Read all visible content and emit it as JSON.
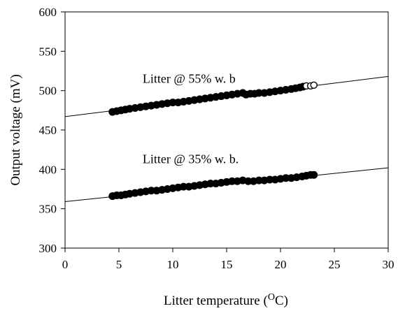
{
  "chart_data": {
    "type": "scatter",
    "title": "",
    "xlabel": "Litter temperature (",
    "xlabel_sup": "O",
    "xlabel_tail": "C)",
    "ylabel": "Output voltage (mV)",
    "xlim": [
      0,
      30
    ],
    "ylim": [
      300,
      600
    ],
    "x_ticks": [
      0,
      5,
      10,
      15,
      20,
      25,
      30
    ],
    "y_ticks": [
      300,
      350,
      400,
      450,
      500,
      550,
      600
    ],
    "grid": false,
    "legend": "none",
    "annotations": [
      {
        "text": "Litter @ 55% w. b",
        "x": 7.2,
        "y": 510
      },
      {
        "text": "Litter @ 35% w. b.",
        "x": 7.2,
        "y": 408
      }
    ],
    "series": [
      {
        "marker": "filled-circle",
        "x": [
          4.4,
          4.8,
          5.2,
          5.6,
          6.0,
          6.5,
          7.0,
          7.5,
          8.0,
          8.5,
          9.0,
          9.5,
          10.0,
          10.5,
          11.0,
          11.5,
          12.0,
          12.5,
          13.0,
          13.5,
          14.0,
          14.5,
          15.0,
          15.5,
          16.0,
          16.5,
          16.8,
          17.2,
          17.6,
          18.0,
          18.5,
          19.0,
          19.5,
          20.0,
          20.5,
          21.0,
          21.4,
          21.8,
          22.1
        ],
        "y": [
          473,
          474,
          475,
          476,
          477,
          478,
          479,
          480,
          481,
          482,
          483,
          484,
          485,
          485,
          486,
          487,
          488,
          489,
          490,
          491,
          492,
          493,
          494,
          495,
          496,
          497,
          495,
          496,
          496,
          497,
          497,
          498,
          499,
          500,
          501,
          502,
          503,
          504,
          505
        ]
      },
      {
        "marker": "open-circle",
        "x": [
          22.4,
          22.8,
          23.1
        ],
        "y": [
          506,
          506,
          507
        ]
      },
      {
        "marker": "filled-circle",
        "x": [
          4.4,
          4.8,
          5.2,
          5.6,
          6.0,
          6.5,
          7.0,
          7.5,
          8.0,
          8.5,
          9.0,
          9.5,
          10.0,
          10.5,
          11.0,
          11.5,
          12.0,
          12.5,
          13.0,
          13.5,
          14.0,
          14.5,
          15.0,
          15.5,
          16.0,
          16.5,
          17.0,
          17.5,
          18.0,
          18.5,
          19.0,
          19.5,
          20.0,
          20.5,
          21.0,
          21.5,
          22.0,
          22.4,
          22.8,
          23.1
        ],
        "y": [
          366,
          367,
          367,
          368,
          369,
          370,
          371,
          372,
          373,
          373,
          374,
          375,
          376,
          377,
          378,
          378,
          379,
          380,
          381,
          382,
          382,
          383,
          384,
          385,
          385,
          386,
          385,
          385,
          386,
          386,
          387,
          387,
          388,
          389,
          389,
          390,
          391,
          392,
          393,
          393
        ]
      }
    ],
    "fit_lines": [
      {
        "x": [
          0,
          30
        ],
        "y": [
          467,
          518
        ]
      },
      {
        "x": [
          0,
          30
        ],
        "y": [
          359,
          402
        ]
      }
    ]
  }
}
